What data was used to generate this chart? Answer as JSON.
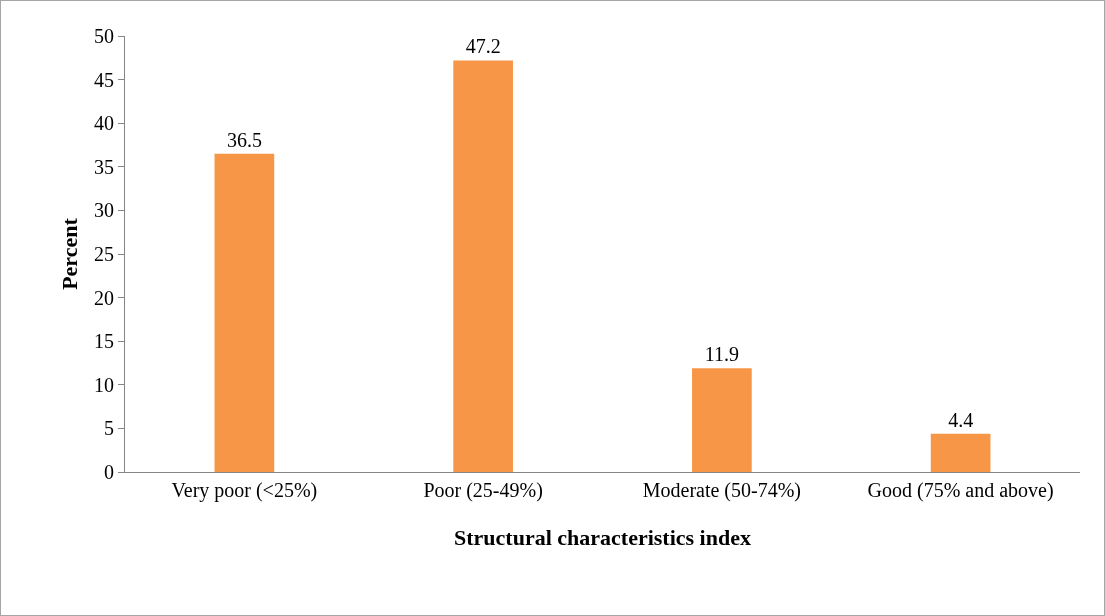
{
  "chart_data": {
    "type": "bar",
    "xlabel": "Structural characteristics index",
    "ylabel": "Percent",
    "categories": [
      "Very poor (<25%)",
      "Poor (25-49%)",
      "Moderate (50-74%)",
      "Good (75% and above)"
    ],
    "values": [
      36.5,
      47.2,
      11.9,
      4.4
    ],
    "color": "#f79646",
    "ylim": [
      0,
      50
    ],
    "yticks": [
      0,
      5,
      10,
      15,
      20,
      25,
      30,
      35,
      40,
      45,
      50
    ],
    "grid": false,
    "data_labels": true
  }
}
